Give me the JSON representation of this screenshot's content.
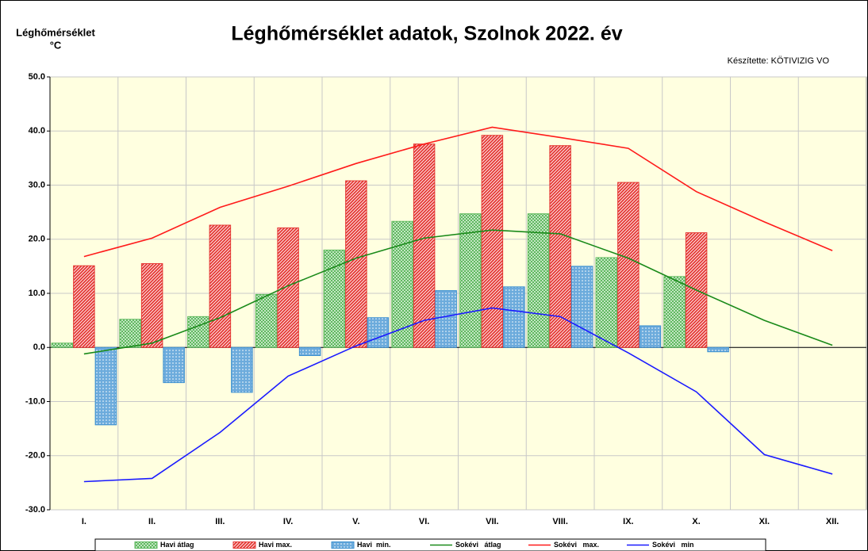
{
  "chart_data": {
    "type": "bar",
    "title": "Léghőmérséklet adatok, Szolnok 2022. év",
    "subtitle": "Készítette: KÖTIVIZIG VO",
    "y_axis_label": "Léghőmérséklet",
    "y_axis_unit": "°C",
    "categories": [
      "I.",
      "II.",
      "III.",
      "IV.",
      "V.",
      "VI.",
      "VII.",
      "VIII.",
      "IX.",
      "X.",
      "XI.",
      "XII."
    ],
    "ylim": [
      -30,
      50
    ],
    "yticks": [
      {
        "value": -30,
        "label": "-30.0"
      },
      {
        "value": -20,
        "label": "-20.0"
      },
      {
        "value": -10,
        "label": "-10.0"
      },
      {
        "value": 0,
        "label": "0.0"
      },
      {
        "value": 10,
        "label": "10.0"
      },
      {
        "value": 20,
        "label": "20.0"
      },
      {
        "value": 30,
        "label": "30.0"
      },
      {
        "value": 40,
        "label": "40.0"
      },
      {
        "value": 50,
        "label": "50.0"
      }
    ],
    "grid": true,
    "background": "#ffffe0",
    "legend": "bottom",
    "series": [
      {
        "name": "Havi átlag",
        "type": "bar",
        "color": "#5cb85c",
        "values": [
          0.8,
          5.2,
          5.7,
          9.8,
          18.0,
          23.3,
          24.7,
          24.7,
          16.6,
          13.1,
          null,
          null
        ]
      },
      {
        "name": "Havi max.",
        "type": "bar",
        "color": "#e53935",
        "values": [
          15.1,
          15.5,
          22.6,
          22.1,
          30.8,
          37.6,
          39.2,
          37.3,
          30.5,
          21.2,
          null,
          null
        ]
      },
      {
        "name": "Havi  min.",
        "type": "bar",
        "color": "#3a8fd0",
        "values": [
          -14.3,
          -6.5,
          -8.3,
          -1.5,
          5.5,
          10.5,
          11.2,
          15.0,
          4.0,
          -0.8,
          null,
          null
        ]
      },
      {
        "name": "Sokévi   átlag",
        "type": "line",
        "color": "#1a8a1a",
        "values": [
          -1.2,
          0.8,
          5.5,
          11.4,
          16.5,
          20.2,
          21.7,
          21.0,
          16.5,
          10.6,
          5.0,
          0.4
        ]
      },
      {
        "name": "Sokévi   max.",
        "type": "line",
        "color": "#ff1a1a",
        "values": [
          16.8,
          20.2,
          25.9,
          29.8,
          34.0,
          37.6,
          40.7,
          38.8,
          36.8,
          28.8,
          23.2,
          17.9
        ]
      },
      {
        "name": "Sokévi   min",
        "type": "line",
        "color": "#1a1aff",
        "values": [
          -24.8,
          -24.2,
          -15.7,
          -5.3,
          0.3,
          5.0,
          7.3,
          5.7,
          -1.0,
          -8.2,
          -19.8,
          -23.4
        ]
      }
    ]
  }
}
